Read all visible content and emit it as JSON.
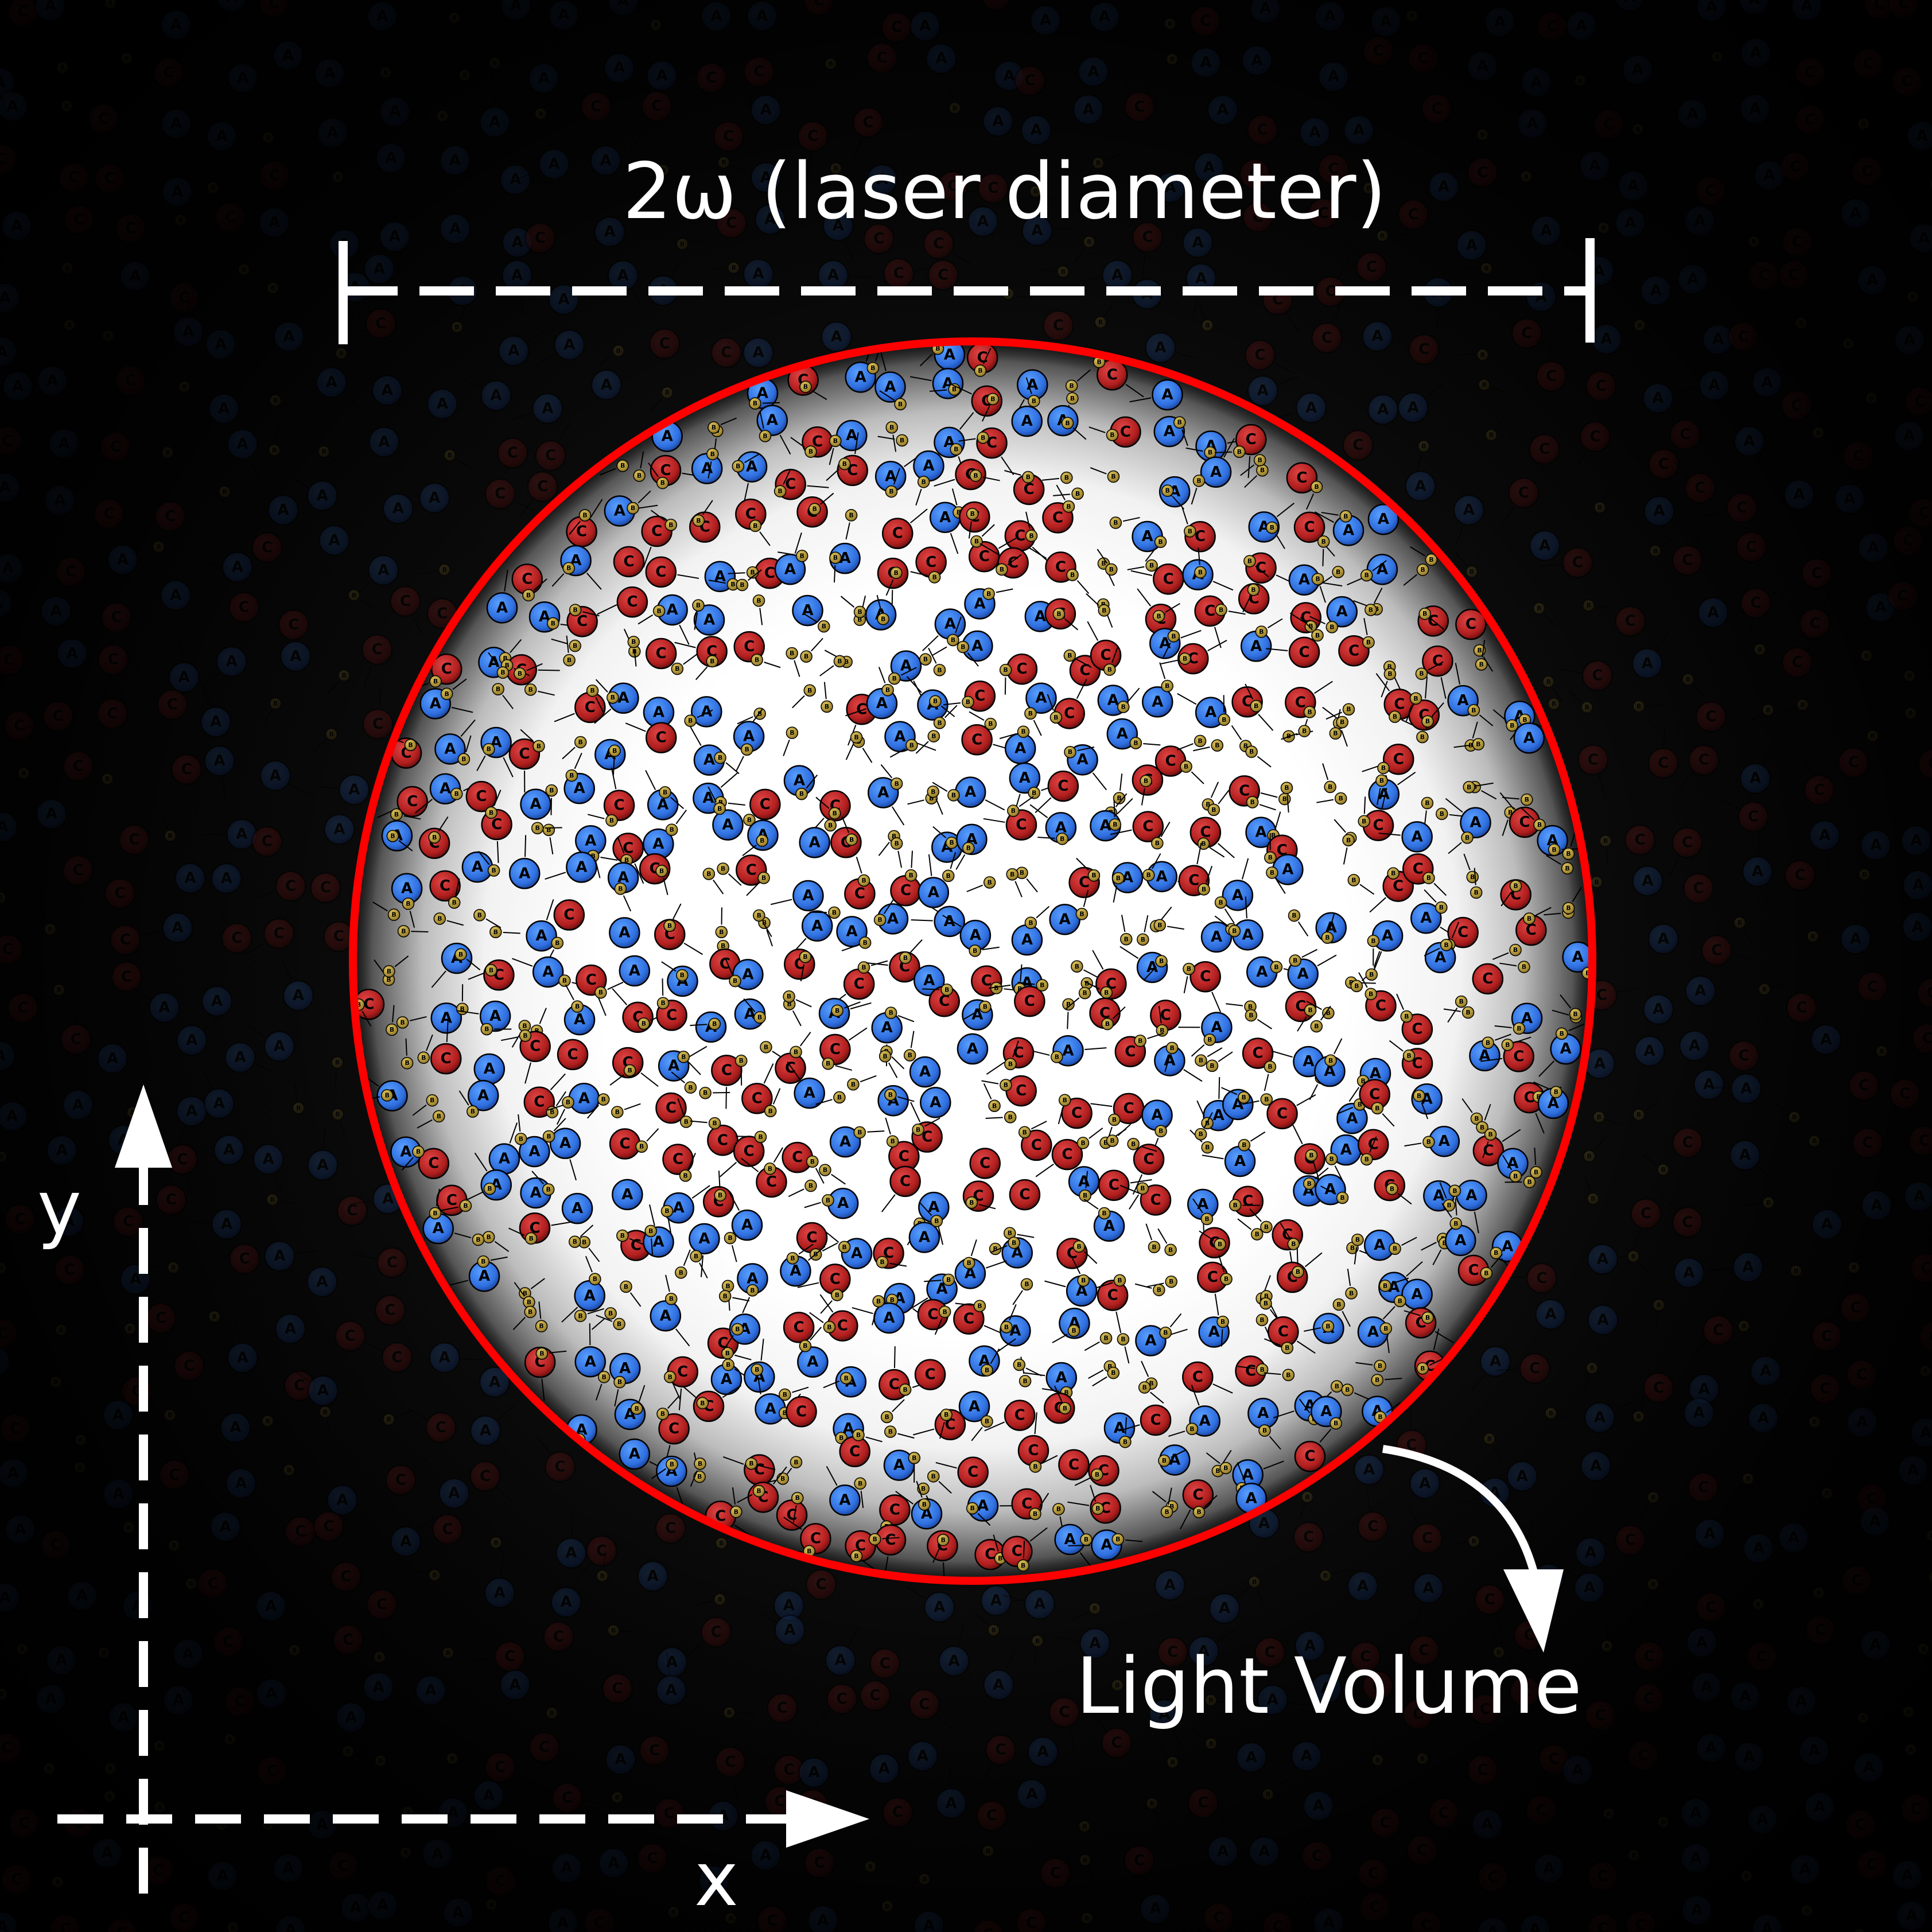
{
  "labels": {
    "diameter": "2ω (laser diameter)",
    "light_volume": "Light Volume",
    "x_axis": "x",
    "y_axis": "y"
  },
  "particle_letters": {
    "a": "A",
    "b": "B",
    "c": "C"
  },
  "colors": {
    "background": "#000000",
    "beam_center": "#ffffff",
    "beam_boundary": "#ff0000",
    "species_a": "#2f6fe0",
    "species_b": "#b89a30",
    "species_c": "#b01e1e",
    "annotation": "#ffffff"
  }
}
